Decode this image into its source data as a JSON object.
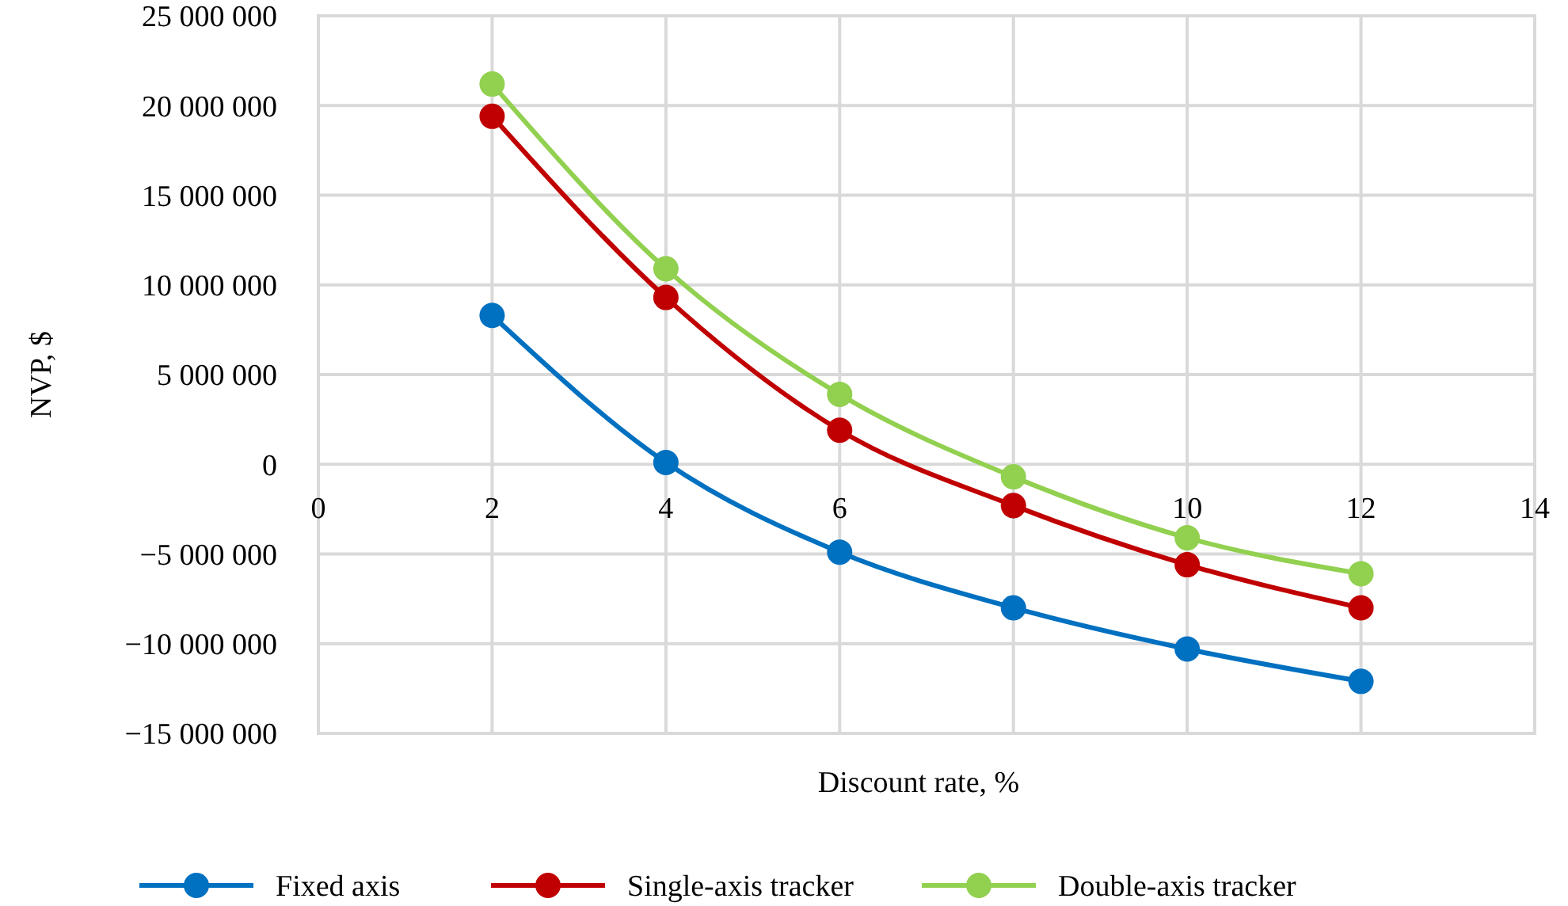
{
  "chart_data": {
    "type": "line",
    "xlabel": "Discount rate, %",
    "ylabel": "NVP, $",
    "x": [
      2,
      4,
      6,
      8,
      10,
      12
    ],
    "series": [
      {
        "name": "Fixed axis",
        "color": "#0070c0",
        "values": [
          8300000,
          100000,
          -4900000,
          -8000000,
          -10300000,
          -12100000
        ]
      },
      {
        "name": "Single-axis tracker",
        "color": "#c00000",
        "values": [
          19400000,
          9300000,
          1900000,
          -2300000,
          -5600000,
          -8000000
        ]
      },
      {
        "name": "Double-axis tracker",
        "color": "#92d050",
        "values": [
          21200000,
          10900000,
          3900000,
          -700000,
          -4100000,
          -6100000
        ]
      }
    ],
    "xlim": [
      0,
      14
    ],
    "xticks": [
      0,
      2,
      4,
      6,
      8,
      10,
      12,
      14
    ],
    "ylim": [
      -15000000,
      25000000
    ],
    "yticks": [
      {
        "value": -15000000,
        "label": "−15 000 000"
      },
      {
        "value": -10000000,
        "label": "−10 000 000"
      },
      {
        "value": -5000000,
        "label": "−5 000 000"
      },
      {
        "value": 0,
        "label": "0"
      },
      {
        "value": 5000000,
        "label": "5 000 000"
      },
      {
        "value": 10000000,
        "label": "10 000 000"
      },
      {
        "value": 15000000,
        "label": "15 000 000"
      },
      {
        "value": 20000000,
        "label": "20 000 000"
      },
      {
        "value": 25000000,
        "label": "25 000 000"
      }
    ],
    "grid": true,
    "legend": "bottom",
    "marker": "circle",
    "line_style": "solid"
  }
}
